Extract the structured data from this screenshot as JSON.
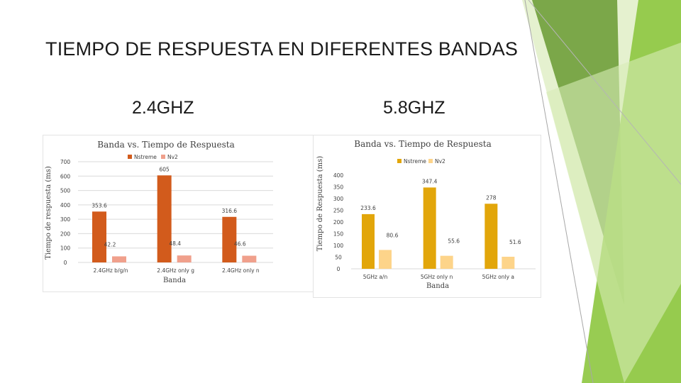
{
  "title": "TIEMPO DE RESPUESTA EN DIFERENTES BANDAS",
  "headings": {
    "left": "2.4GHZ",
    "right": "5.8GHZ"
  },
  "colors": {
    "nstreme_24": "#d25b1c",
    "nv2_24": "#f0a08c",
    "nstreme_58": "#e2a60a",
    "nv2_58": "#fdd48a",
    "grid": "#d9d9d9",
    "deco_green_dark": "#6f9e3a",
    "deco_green": "#8dc63f",
    "deco_green_light": "#cfe6a8"
  },
  "chart_data": [
    {
      "type": "bar",
      "title": "Banda vs. Tiempo de Respuesta",
      "xlabel": "Banda",
      "ylabel": "Tiempo de respuesta (ms)",
      "ylim": [
        0,
        700
      ],
      "yticks": [
        0,
        100,
        200,
        300,
        400,
        500,
        600,
        700
      ],
      "categories": [
        "2.4GHz b/g/n",
        "2.4GHz only g",
        "2.4GHz only n"
      ],
      "legend_position": "top",
      "grid": true,
      "series": [
        {
          "name": "Nstreme",
          "values": [
            353.6,
            605,
            316.6
          ]
        },
        {
          "name": "Nv2",
          "values": [
            42.2,
            48.4,
            46.6
          ]
        }
      ]
    },
    {
      "type": "bar",
      "title": "Banda vs. Tiempo de Respuesta",
      "xlabel": "Banda",
      "ylabel": "Tiempo de Respuesta (ms)",
      "ylim": [
        0,
        400
      ],
      "yticks": [
        0,
        50,
        100,
        150,
        200,
        250,
        300,
        350,
        400
      ],
      "categories": [
        "5GHz a/n",
        "5GHz only n",
        "5GHz only a"
      ],
      "legend_position": "top-right",
      "grid": false,
      "series": [
        {
          "name": "Nstreme",
          "values": [
            233.6,
            347.4,
            278
          ]
        },
        {
          "name": "Nv2",
          "values": [
            80.6,
            55.6,
            51.6
          ]
        }
      ]
    }
  ]
}
